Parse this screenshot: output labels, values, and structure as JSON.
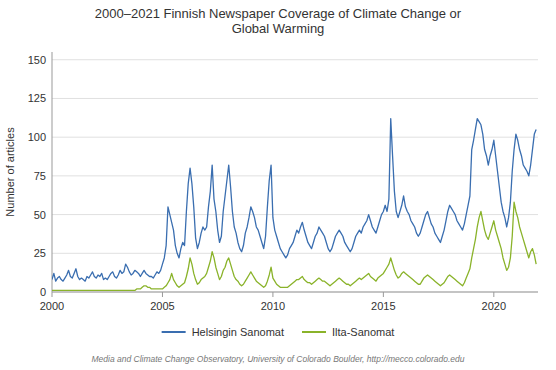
{
  "chart_data": {
    "type": "line",
    "title": "2000–2021 Finnish Newspaper Coverage of Climate Change or\nGlobal Warming",
    "ylabel": "Number of articles",
    "source": "Media and Climate Change Observatory, University of Colorado Boulder, http://mecco.colorado.edu",
    "xlim": [
      2000,
      2022
    ],
    "xticks": [
      2000,
      2005,
      2010,
      2015,
      2020
    ],
    "ylim": [
      0,
      155
    ],
    "yticks": [
      0,
      25,
      50,
      75,
      100,
      125,
      150
    ],
    "grid": true,
    "legend": "bottom",
    "x": [
      2000,
      2000.0833333333333,
      2000.1666666666667,
      2000.25,
      2000.3333333333333,
      2000.4166666666667,
      2000.5,
      2000.5833333333333,
      2000.6666666666667,
      2000.75,
      2000.8333333333333,
      2000.9166666666667,
      2001,
      2001.0833333333333,
      2001.1666666666667,
      2001.25,
      2001.3333333333333,
      2001.4166666666667,
      2001.5,
      2001.5833333333333,
      2001.6666666666667,
      2001.75,
      2001.8333333333333,
      2001.9166666666667,
      2002,
      2002.0833333333333,
      2002.1666666666667,
      2002.25,
      2002.3333333333333,
      2002.4166666666667,
      2002.5,
      2002.5833333333333,
      2002.6666666666667,
      2002.75,
      2002.8333333333333,
      2002.9166666666667,
      2003,
      2003.0833333333333,
      2003.1666666666667,
      2003.25,
      2003.3333333333333,
      2003.4166666666667,
      2003.5,
      2003.5833333333333,
      2003.6666666666667,
      2003.75,
      2003.8333333333333,
      2003.9166666666667,
      2004,
      2004.0833333333333,
      2004.1666666666667,
      2004.25,
      2004.3333333333333,
      2004.4166666666667,
      2004.5,
      2004.5833333333333,
      2004.6666666666667,
      2004.75,
      2004.8333333333333,
      2004.9166666666667,
      2005,
      2005.0833333333333,
      2005.1666666666667,
      2005.25,
      2005.3333333333333,
      2005.4166666666667,
      2005.5,
      2005.5833333333333,
      2005.6666666666667,
      2005.75,
      2005.8333333333333,
      2005.9166666666667,
      2006,
      2006.0833333333333,
      2006.1666666666667,
      2006.25,
      2006.3333333333333,
      2006.4166666666667,
      2006.5,
      2006.5833333333333,
      2006.6666666666667,
      2006.75,
      2006.8333333333333,
      2006.9166666666667,
      2007,
      2007.0833333333333,
      2007.1666666666667,
      2007.25,
      2007.3333333333333,
      2007.4166666666667,
      2007.5,
      2007.5833333333333,
      2007.6666666666667,
      2007.75,
      2007.8333333333333,
      2007.9166666666667,
      2008,
      2008.0833333333333,
      2008.1666666666667,
      2008.25,
      2008.3333333333333,
      2008.4166666666667,
      2008.5,
      2008.5833333333333,
      2008.6666666666667,
      2008.75,
      2008.8333333333333,
      2008.9166666666667,
      2009,
      2009.0833333333333,
      2009.1666666666667,
      2009.25,
      2009.3333333333333,
      2009.4166666666667,
      2009.5,
      2009.5833333333333,
      2009.6666666666667,
      2009.75,
      2009.8333333333333,
      2009.9166666666667,
      2010,
      2010.0833333333333,
      2010.1666666666667,
      2010.25,
      2010.3333333333333,
      2010.4166666666667,
      2010.5,
      2010.5833333333333,
      2010.6666666666667,
      2010.75,
      2010.8333333333333,
      2010.9166666666667,
      2011,
      2011.0833333333333,
      2011.1666666666667,
      2011.25,
      2011.3333333333333,
      2011.4166666666667,
      2011.5,
      2011.5833333333333,
      2011.6666666666667,
      2011.75,
      2011.8333333333333,
      2011.9166666666667,
      2012,
      2012.0833333333333,
      2012.1666666666667,
      2012.25,
      2012.3333333333333,
      2012.4166666666667,
      2012.5,
      2012.5833333333333,
      2012.6666666666667,
      2012.75,
      2012.8333333333333,
      2012.9166666666667,
      2013,
      2013.0833333333333,
      2013.1666666666667,
      2013.25,
      2013.3333333333333,
      2013.4166666666667,
      2013.5,
      2013.5833333333333,
      2013.6666666666667,
      2013.75,
      2013.8333333333333,
      2013.9166666666667,
      2014,
      2014.0833333333333,
      2014.1666666666667,
      2014.25,
      2014.3333333333333,
      2014.4166666666667,
      2014.5,
      2014.5833333333333,
      2014.6666666666667,
      2014.75,
      2014.8333333333333,
      2014.9166666666667,
      2015,
      2015.0833333333333,
      2015.1666666666667,
      2015.25,
      2015.3333333333333,
      2015.4166666666667,
      2015.5,
      2015.5833333333333,
      2015.6666666666667,
      2015.75,
      2015.8333333333333,
      2015.9166666666667,
      2016,
      2016.0833333333333,
      2016.1666666666667,
      2016.25,
      2016.3333333333333,
      2016.4166666666667,
      2016.5,
      2016.5833333333333,
      2016.6666666666667,
      2016.75,
      2016.8333333333333,
      2016.9166666666667,
      2017,
      2017.0833333333333,
      2017.1666666666667,
      2017.25,
      2017.3333333333333,
      2017.4166666666667,
      2017.5,
      2017.5833333333333,
      2017.6666666666667,
      2017.75,
      2017.8333333333333,
      2017.9166666666667,
      2018,
      2018.0833333333333,
      2018.1666666666667,
      2018.25,
      2018.3333333333333,
      2018.4166666666667,
      2018.5,
      2018.5833333333333,
      2018.6666666666667,
      2018.75,
      2018.8333333333333,
      2018.9166666666667,
      2019,
      2019.0833333333333,
      2019.1666666666667,
      2019.25,
      2019.3333333333333,
      2019.4166666666667,
      2019.5,
      2019.5833333333333,
      2019.6666666666667,
      2019.75,
      2019.8333333333333,
      2019.9166666666667,
      2020,
      2020.0833333333333,
      2020.1666666666667,
      2020.25,
      2020.3333333333333,
      2020.4166666666667,
      2020.5,
      2020.5833333333333,
      2020.6666666666667,
      2020.75,
      2020.8333333333333,
      2020.9166666666667,
      2021,
      2021.0833333333333,
      2021.1666666666667,
      2021.25,
      2021.3333333333333,
      2021.4166666666667,
      2021.5,
      2021.5833333333333,
      2021.6666666666667,
      2021.75,
      2021.8333333333333,
      2021.9166666666667
    ],
    "series": [
      {
        "name": "Helsingin Sanomat",
        "color": "#3a6eb0",
        "values": [
          8,
          12,
          7,
          9,
          10,
          8,
          7,
          9,
          11,
          14,
          10,
          9,
          12,
          15,
          10,
          8,
          9,
          8,
          7,
          10,
          9,
          11,
          13,
          10,
          9,
          11,
          10,
          12,
          8,
          9,
          8,
          10,
          12,
          13,
          10,
          9,
          11,
          14,
          12,
          13,
          18,
          16,
          13,
          11,
          12,
          14,
          13,
          12,
          10,
          12,
          14,
          12,
          11,
          10,
          10,
          9,
          11,
          13,
          12,
          14,
          18,
          22,
          30,
          55,
          50,
          45,
          40,
          30,
          25,
          22,
          28,
          32,
          30,
          52,
          70,
          80,
          70,
          55,
          35,
          28,
          32,
          38,
          42,
          40,
          42,
          55,
          65,
          82,
          60,
          52,
          40,
          32,
          36,
          52,
          62,
          72,
          82,
          68,
          52,
          42,
          38,
          32,
          28,
          26,
          30,
          38,
          42,
          48,
          55,
          52,
          48,
          42,
          40,
          36,
          32,
          28,
          36,
          55,
          72,
          82,
          48,
          40,
          36,
          32,
          28,
          26,
          24,
          22,
          24,
          28,
          30,
          32,
          36,
          40,
          38,
          42,
          45,
          40,
          36,
          32,
          30,
          28,
          32,
          36,
          38,
          42,
          40,
          38,
          36,
          32,
          28,
          26,
          28,
          32,
          36,
          38,
          40,
          38,
          36,
          32,
          30,
          28,
          26,
          28,
          32,
          36,
          38,
          40,
          38,
          42,
          44,
          46,
          50,
          46,
          42,
          40,
          38,
          42,
          46,
          50,
          52,
          56,
          52,
          60,
          112,
          88,
          65,
          52,
          48,
          52,
          56,
          62,
          55,
          52,
          50,
          46,
          44,
          42,
          38,
          36,
          38,
          42,
          46,
          50,
          52,
          48,
          44,
          42,
          38,
          36,
          34,
          32,
          36,
          40,
          46,
          52,
          56,
          54,
          52,
          50,
          46,
          44,
          42,
          40,
          44,
          50,
          56,
          62,
          92,
          98,
          105,
          112,
          110,
          108,
          102,
          92,
          88,
          82,
          88,
          92,
          98,
          88,
          78,
          68,
          58,
          52,
          48,
          42,
          48,
          58,
          78,
          92,
          102,
          98,
          92,
          88,
          82,
          80,
          78,
          75,
          82,
          92,
          102,
          105
        ]
      },
      {
        "name": "Ilta-Sanomat",
        "color": "#8ab32a",
        "values": [
          1,
          1,
          1,
          1,
          1,
          1,
          1,
          1,
          1,
          1,
          1,
          1,
          1,
          1,
          1,
          1,
          1,
          1,
          1,
          1,
          1,
          1,
          1,
          1,
          1,
          1,
          1,
          1,
          1,
          1,
          1,
          1,
          1,
          1,
          1,
          1,
          1,
          1,
          1,
          1,
          1,
          1,
          1,
          1,
          1,
          1,
          2,
          2,
          2,
          3,
          4,
          4,
          3,
          3,
          2,
          2,
          2,
          2,
          2,
          2,
          2,
          3,
          4,
          6,
          8,
          12,
          8,
          6,
          4,
          3,
          4,
          5,
          6,
          10,
          15,
          22,
          18,
          12,
          8,
          5,
          6,
          8,
          9,
          10,
          12,
          16,
          20,
          26,
          22,
          16,
          12,
          8,
          10,
          14,
          16,
          20,
          22,
          18,
          14,
          10,
          8,
          7,
          5,
          4,
          5,
          7,
          9,
          11,
          13,
          11,
          9,
          7,
          6,
          5,
          4,
          3,
          4,
          7,
          11,
          16,
          9,
          7,
          5,
          4,
          3,
          3,
          3,
          3,
          3,
          4,
          5,
          6,
          7,
          8,
          8,
          9,
          10,
          8,
          7,
          6,
          6,
          5,
          6,
          7,
          8,
          9,
          8,
          7,
          7,
          6,
          5,
          4,
          5,
          6,
          7,
          8,
          9,
          8,
          7,
          6,
          5,
          5,
          4,
          5,
          6,
          7,
          8,
          9,
          8,
          9,
          10,
          11,
          12,
          10,
          9,
          8,
          7,
          9,
          10,
          11,
          12,
          14,
          16,
          18,
          22,
          18,
          14,
          11,
          9,
          10,
          12,
          13,
          12,
          11,
          10,
          9,
          8,
          7,
          6,
          5,
          5,
          7,
          9,
          10,
          11,
          10,
          9,
          8,
          7,
          6,
          5,
          4,
          5,
          6,
          8,
          10,
          11,
          10,
          9,
          8,
          7,
          6,
          5,
          4,
          6,
          9,
          12,
          15,
          22,
          28,
          34,
          42,
          48,
          52,
          46,
          40,
          36,
          34,
          38,
          42,
          46,
          40,
          36,
          32,
          28,
          22,
          18,
          14,
          16,
          22,
          36,
          58,
          52,
          48,
          42,
          38,
          34,
          30,
          26,
          22,
          26,
          28,
          24,
          18
        ]
      }
    ]
  }
}
